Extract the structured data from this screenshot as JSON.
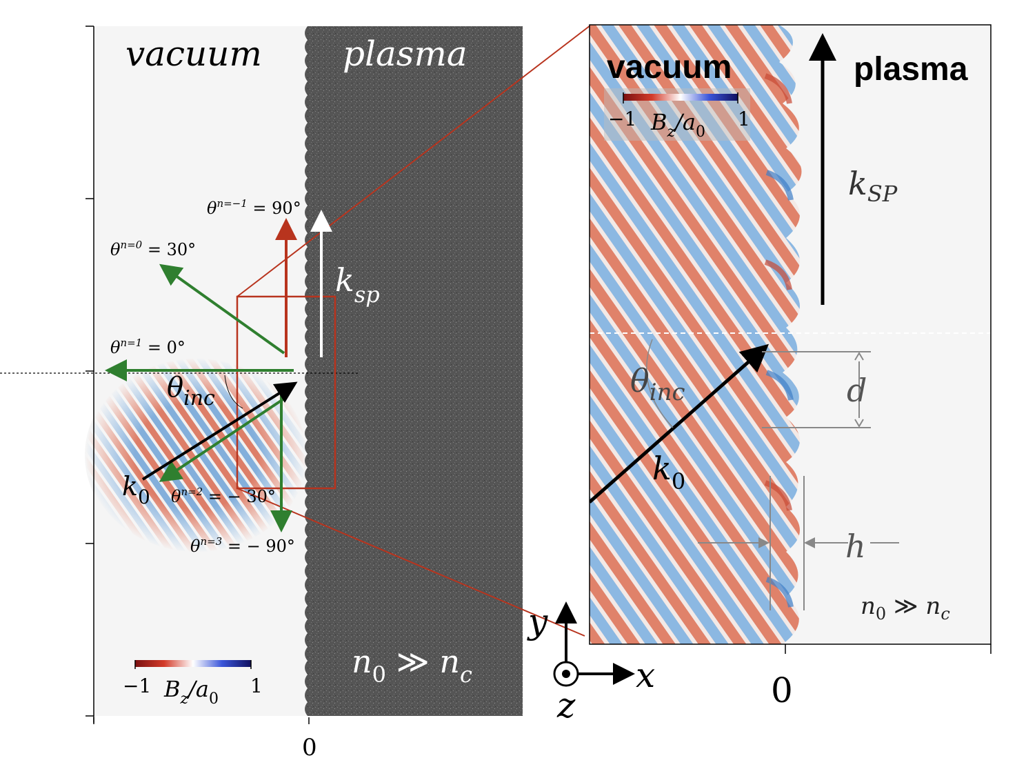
{
  "left_panel": {
    "vacuum_label": "vacuum",
    "plasma_label": "plasma",
    "k_sp_main": "k",
    "k_sp_sub": "sp",
    "theta_inc_main": "θ",
    "theta_inc_sub": "inc",
    "k0_main": "k",
    "k0_sub": "0",
    "orders": [
      {
        "sup": "n=−1",
        "value": " = 90°"
      },
      {
        "sup": "n=0",
        "value": " = 30°"
      },
      {
        "sup": "n=1",
        "value": " = 0°"
      },
      {
        "sup": "n=2",
        "value": " = − 30°"
      },
      {
        "sup": "n=3",
        "value": " = − 90°"
      }
    ],
    "density_a": "n",
    "density_a_sub": "0",
    "density_op": " ≫ ",
    "density_b": "n",
    "density_b_sub": "c",
    "colorbar": {
      "min": "−1",
      "max": "1",
      "label_main": "B",
      "label_sub": "z",
      "label_mid": "/a",
      "label_sub2": "0"
    },
    "x_tick": "0"
  },
  "right_panel": {
    "vacuum_label": "vacuum",
    "plasma_label": "plasma",
    "k_sp_main": "k",
    "k_sp_sub": "SP",
    "theta_inc_main": "θ",
    "theta_inc_sub": "inc",
    "k0_main": "k",
    "k0_sub": "0",
    "d_label": "d",
    "h_label": "h",
    "density_a": "n",
    "density_a_sub": "0",
    "density_op": " ≫ ",
    "density_b": "n",
    "density_b_sub": "c",
    "colorbar": {
      "min": "−1",
      "max": "1",
      "label_main": "B",
      "label_sub": "z",
      "label_mid": "/a",
      "label_sub2": "0"
    },
    "x_tick": "0"
  },
  "axes": {
    "y": "y",
    "x": "x",
    "z": "z"
  },
  "colors": {
    "red": "#b8341e",
    "green": "#2f7f2f",
    "blue": "#2a5fbf",
    "plasma": "#555555",
    "vacuum_bg": "#f5f5f5"
  }
}
